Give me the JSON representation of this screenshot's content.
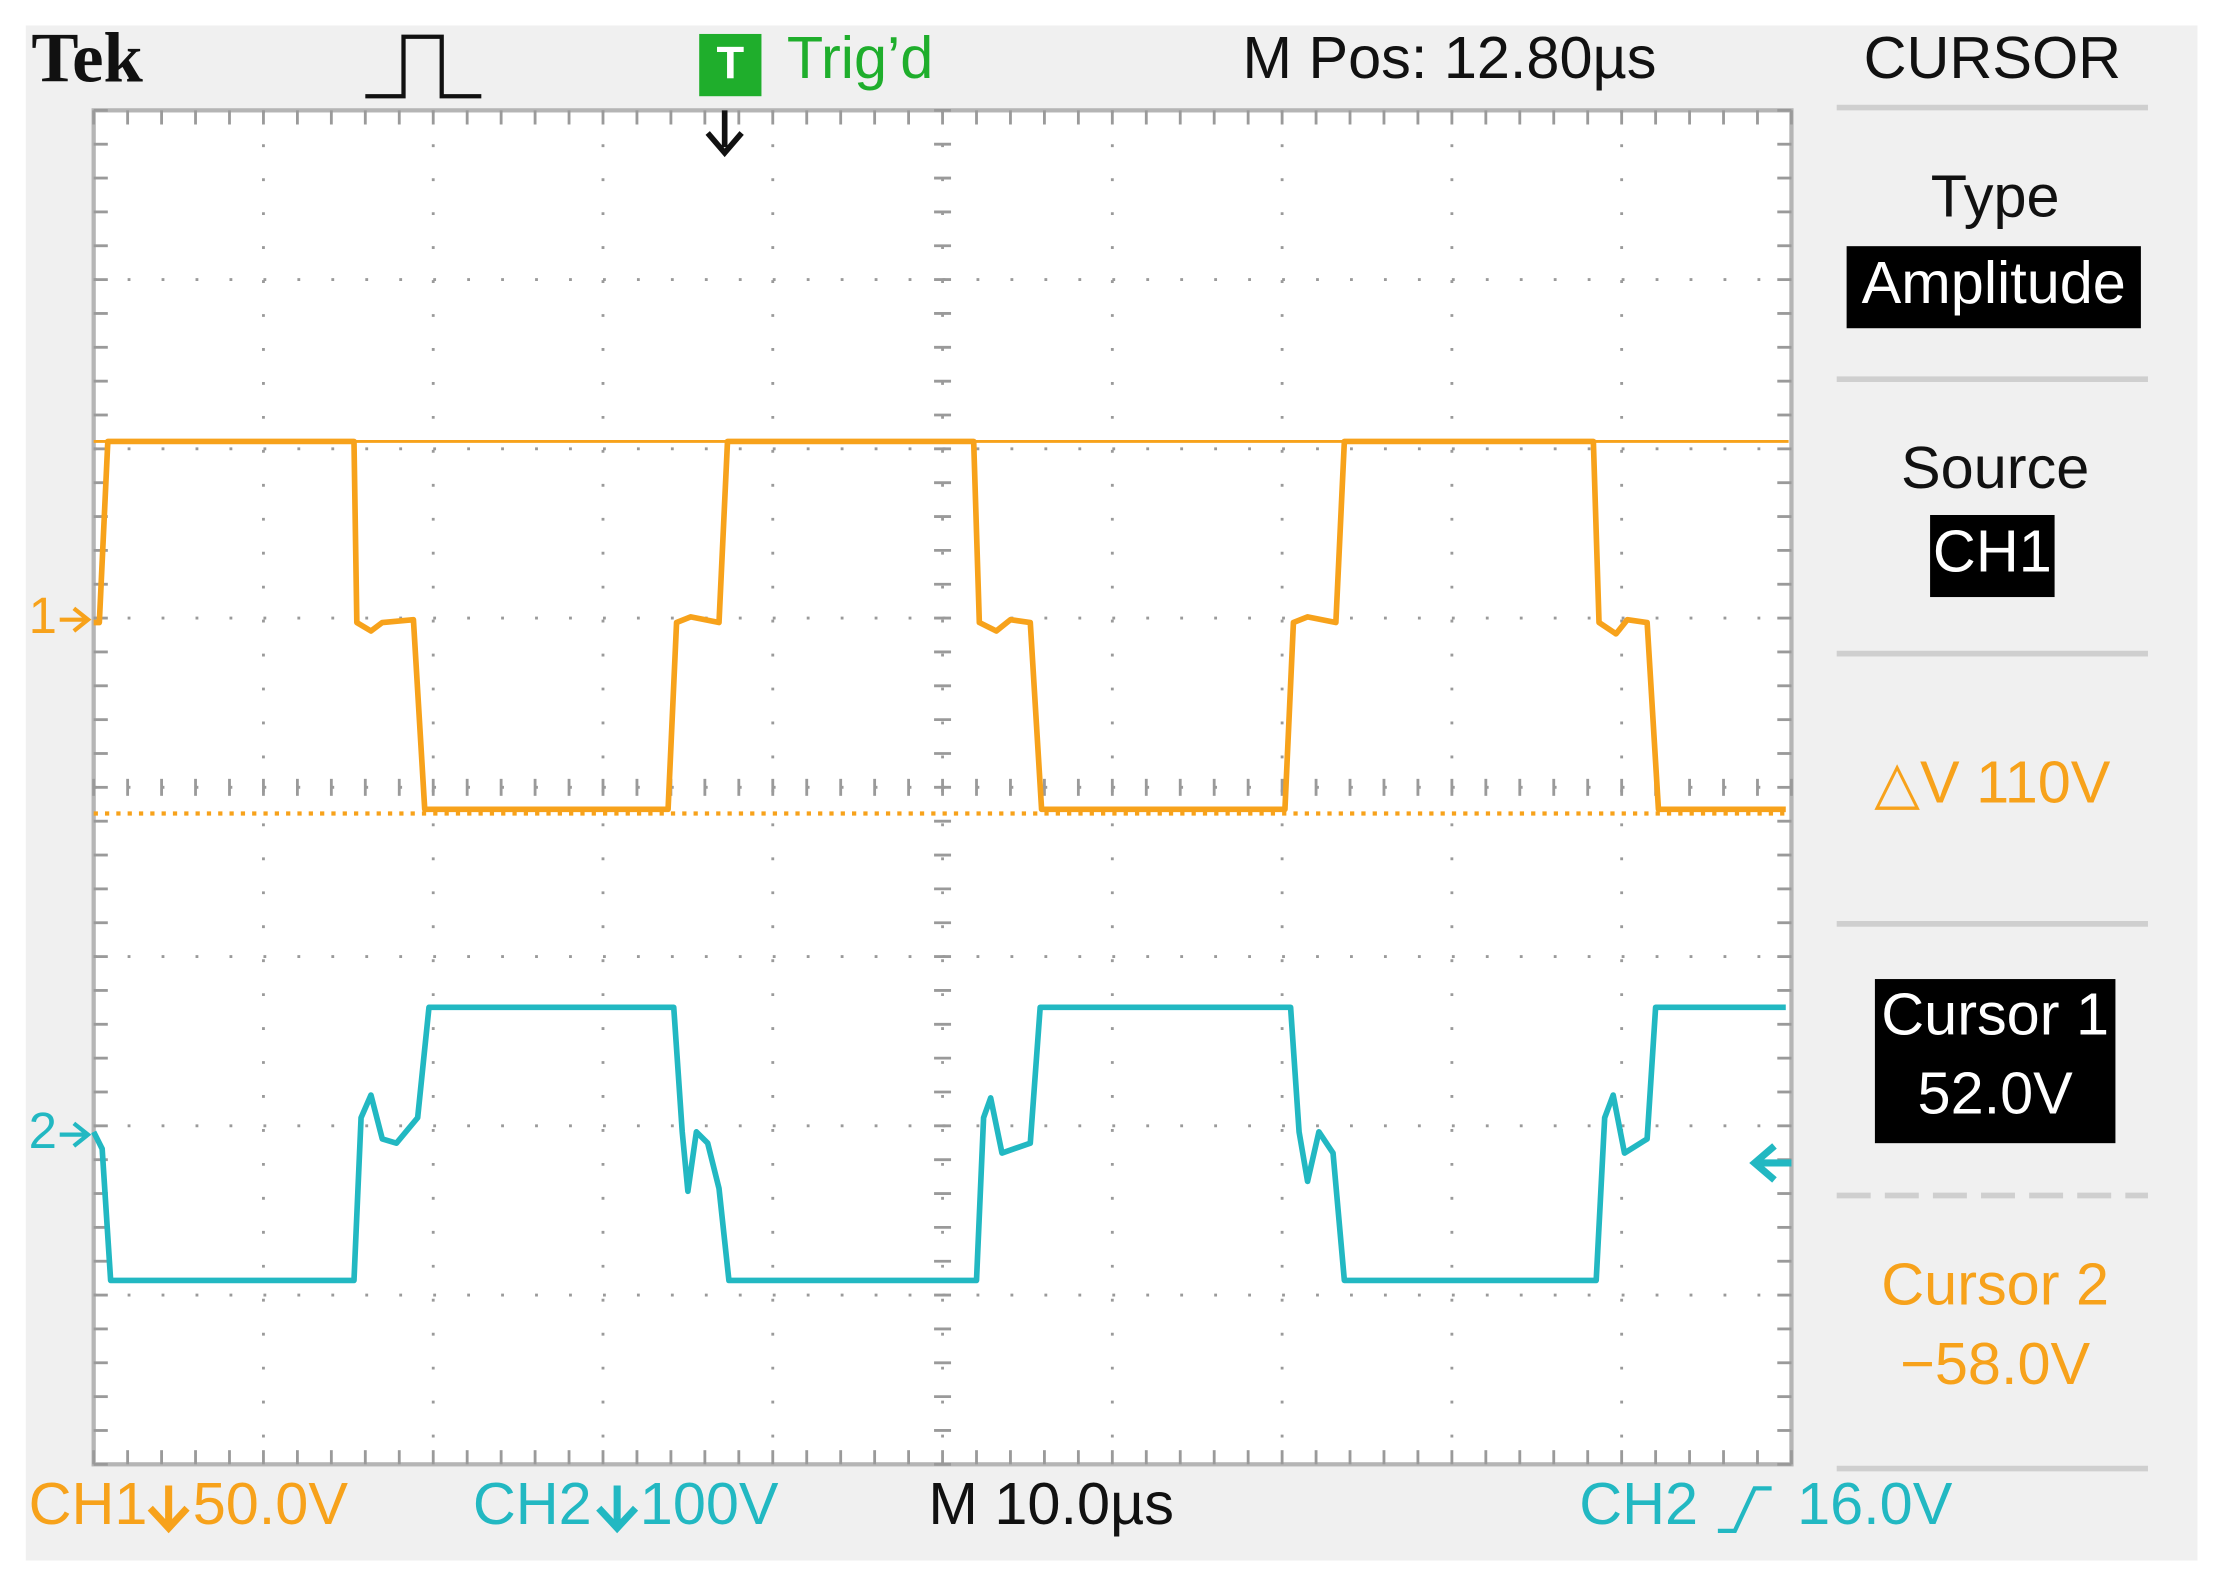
{
  "header": {
    "brand": "Tek",
    "trigger_icon": "T",
    "trigger_status": "Trig’d",
    "m_pos": "M Pos: 12.80µs"
  },
  "menu": {
    "title": "CURSOR",
    "type_label": "Type",
    "type_value": "Amplitude",
    "source_label": "Source",
    "source_value": "CH1",
    "delta": "△V 110V",
    "cursor1_label": "Cursor 1",
    "cursor1_value": "52.0V",
    "cursor2_label": "Cursor 2",
    "cursor2_value": "−58.0V"
  },
  "markers": {
    "ch1": "1",
    "ch2": "2"
  },
  "footer": {
    "ch1_label": "CH1",
    "ch1_scale": "50.0V",
    "ch2_label": "CH2",
    "ch2_scale": "100V",
    "timebase": "M 10.0µs",
    "trigger_source": "CH2",
    "trigger_level": "16.0V"
  }
}
